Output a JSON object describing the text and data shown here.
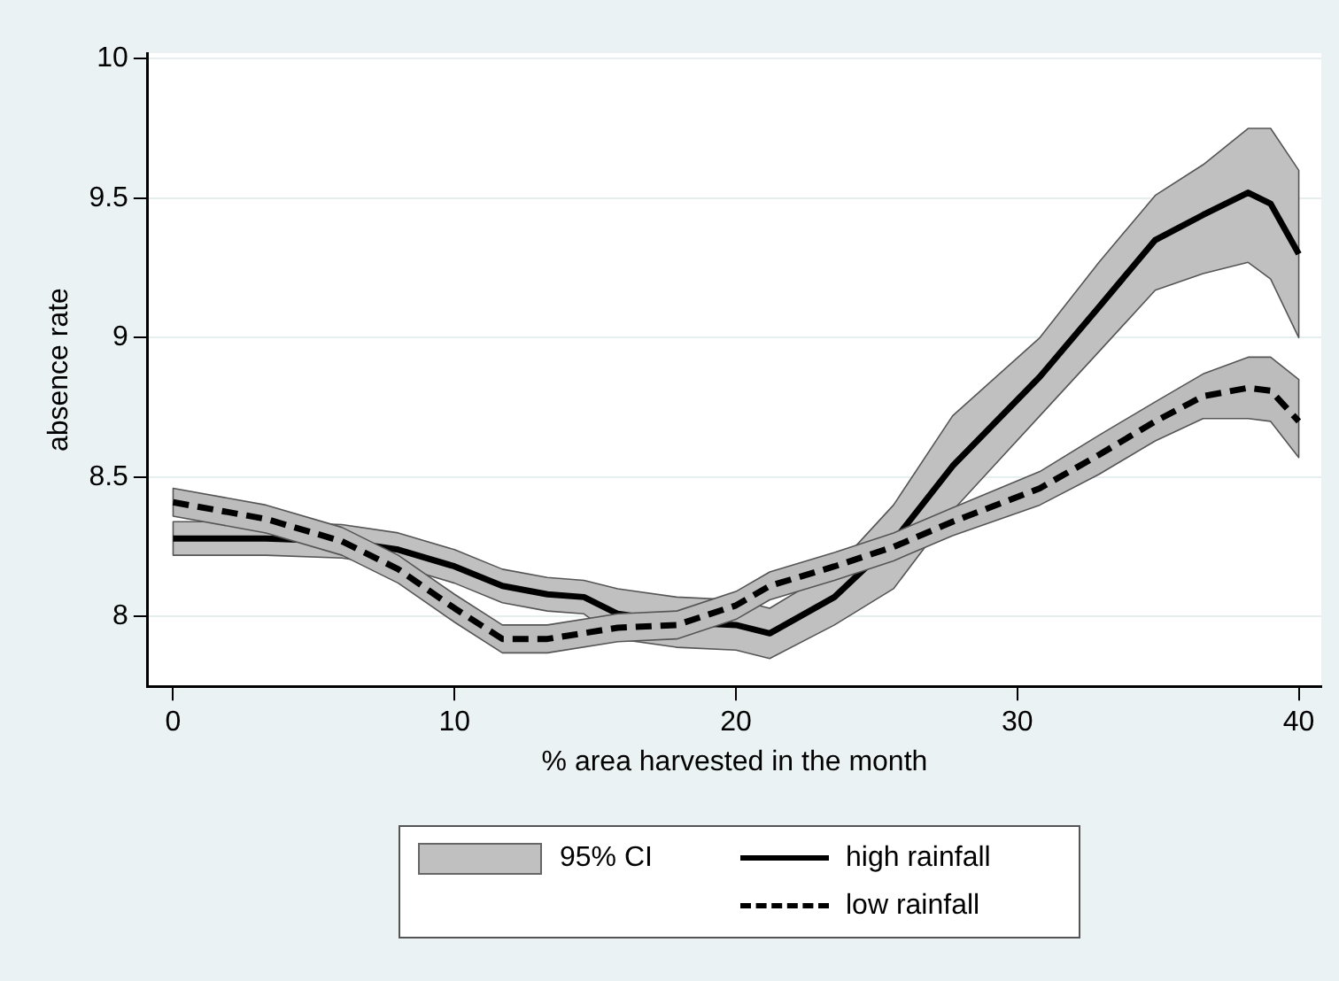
{
  "chart_data": {
    "type": "line",
    "xlabel": "% area harvested in the month",
    "ylabel": "absence rate",
    "xlim": [
      -0.9,
      40.8
    ],
    "xticks": [
      0,
      10,
      20,
      30,
      40
    ],
    "ylim": [
      7.75,
      10.02
    ],
    "yticks": [
      8,
      8.5,
      9,
      9.5,
      10
    ],
    "grid": "y",
    "legend": "bottom",
    "marker": "none",
    "annotations": [
      "95% CI"
    ],
    "series": [
      {
        "name": "high rainfall",
        "color": "#000000",
        "line_style": "solid",
        "x": [
          0,
          3.3,
          6,
          8,
          10,
          11.7,
          13.3,
          14.6,
          15.8,
          17.9,
          20,
          21.2,
          23.5,
          25.6,
          27.7,
          30.8,
          32.9,
          34.9,
          36.6,
          38.2,
          39,
          40
        ],
        "values": [
          8.28,
          8.28,
          8.27,
          8.24,
          8.18,
          8.11,
          8.08,
          8.07,
          8.01,
          7.98,
          7.97,
          7.94,
          8.07,
          8.27,
          8.54,
          8.86,
          9.11,
          9.35,
          9.44,
          9.52,
          9.48,
          9.3
        ],
        "upper": [
          8.34,
          8.34,
          8.33,
          8.3,
          8.24,
          8.17,
          8.14,
          8.13,
          8.1,
          8.07,
          8.06,
          8.03,
          8.17,
          8.4,
          8.72,
          9.0,
          9.27,
          9.51,
          9.62,
          9.75,
          9.75,
          9.6
        ],
        "lower": [
          8.22,
          8.22,
          8.21,
          8.18,
          8.12,
          8.05,
          8.02,
          8.01,
          7.92,
          7.89,
          7.88,
          7.85,
          7.97,
          8.1,
          8.38,
          8.72,
          8.95,
          9.17,
          9.23,
          9.27,
          9.21,
          9.0
        ]
      },
      {
        "name": "low rainfall",
        "color": "#000000",
        "line_style": "dashed",
        "x": [
          0,
          3.3,
          6,
          8,
          10,
          11.7,
          13.3,
          15.8,
          17.9,
          20,
          21.2,
          23.5,
          25.6,
          27.7,
          30.8,
          32.9,
          34.9,
          36.6,
          38.2,
          39,
          40
        ],
        "values": [
          8.41,
          8.35,
          8.27,
          8.17,
          8.03,
          7.92,
          7.92,
          7.96,
          7.97,
          8.04,
          8.11,
          8.18,
          8.25,
          8.34,
          8.46,
          8.58,
          8.7,
          8.79,
          8.82,
          8.81,
          8.7
        ],
        "upper": [
          8.46,
          8.4,
          8.32,
          8.22,
          8.08,
          7.97,
          7.97,
          8.01,
          8.02,
          8.09,
          8.16,
          8.23,
          8.3,
          8.39,
          8.52,
          8.65,
          8.77,
          8.87,
          8.93,
          8.93,
          8.85
        ],
        "lower": [
          8.36,
          8.3,
          8.22,
          8.12,
          7.98,
          7.87,
          7.87,
          7.91,
          7.92,
          7.99,
          8.06,
          8.13,
          8.2,
          8.29,
          8.4,
          8.51,
          8.63,
          8.71,
          8.71,
          8.7,
          8.57
        ]
      }
    ]
  }
}
